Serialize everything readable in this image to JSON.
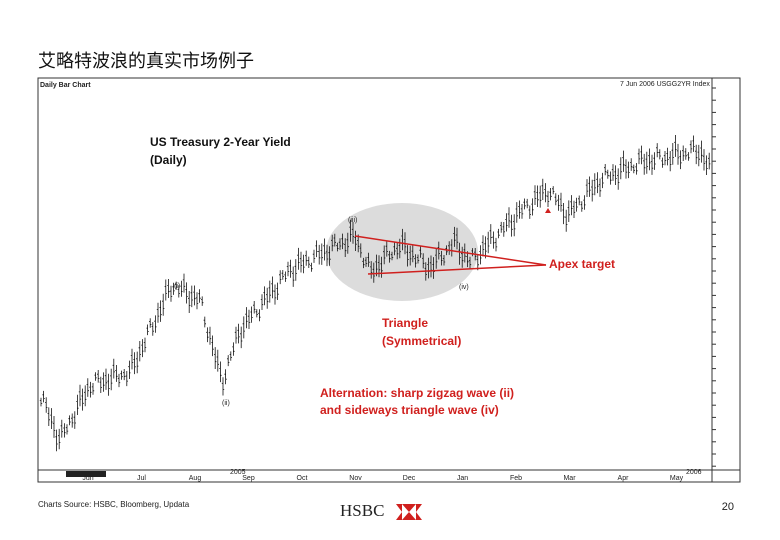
{
  "slide": {
    "title": "艾略特波浪的真实市场例子"
  },
  "chart_image": {
    "chart_name": "Daily Bar Chart",
    "header": "7 Jun 2006 USGG2YR Index",
    "chart_title": [
      "US Treasury 2-Year Yield",
      "(Daily)"
    ],
    "apex_label": "Apex target",
    "triangle_label": [
      "Triangle",
      "(Symmetrical)"
    ],
    "alternation_label": [
      "Alternation: sharp zigzag wave (ii)",
      "and sideways triangle wave (iv)"
    ],
    "wave_labels": [
      "(i)",
      "(ii)",
      "(iii)",
      "(iv)"
    ],
    "months": [
      "Jun",
      "Jul",
      "Aug",
      "Sep",
      "Oct",
      "Nov",
      "Dec",
      "Jan",
      "Feb",
      "Mar",
      "Apr",
      "May"
    ],
    "years": [
      "2005",
      "2006"
    ]
  },
  "footer": {
    "source": "Charts Source: HSBC, Bloomberg, Updata",
    "logo": "HSBC",
    "page": "20"
  }
}
